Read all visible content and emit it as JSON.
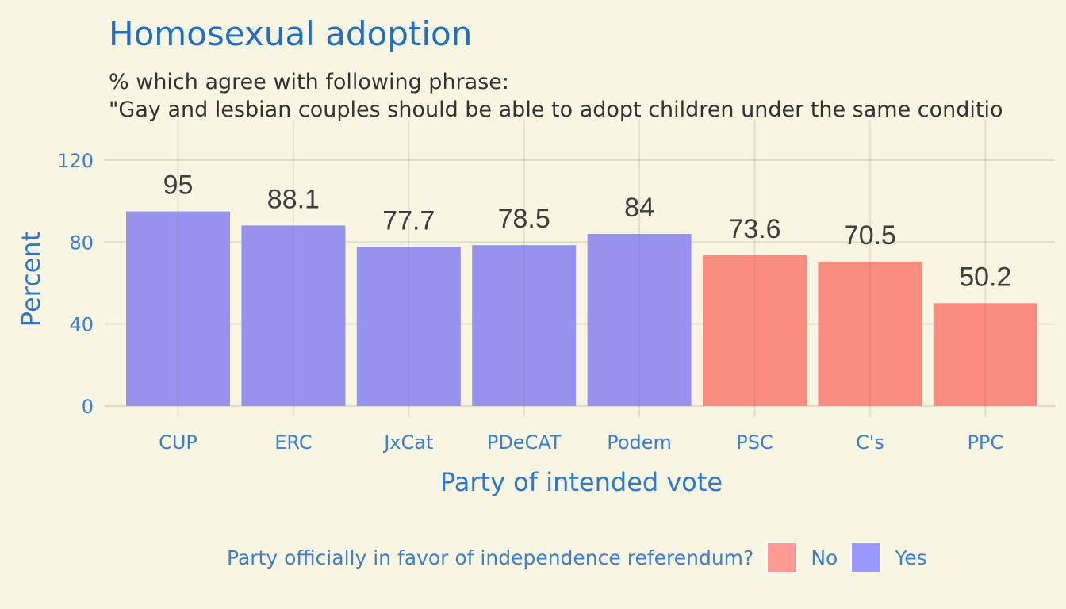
{
  "title": "Homosexual adoption",
  "subtitle_line1": "% which agree with following phrase:",
  "subtitle_line2": "\"Gay and lesbian couples should be able to adopt children under the same conditio",
  "chart_data": {
    "type": "bar",
    "categories": [
      "CUP",
      "ERC",
      "JxCat",
      "PDeCAT",
      "Podem",
      "PSC",
      "C's",
      "PPC"
    ],
    "values": [
      95,
      88.1,
      77.7,
      78.5,
      84,
      73.6,
      70.5,
      50.2
    ],
    "value_labels": [
      "95",
      "88.1",
      "77.7",
      "78.5",
      "84",
      "73.6",
      "70.5",
      "50.2"
    ],
    "group": [
      "Yes",
      "Yes",
      "Yes",
      "Yes",
      "Yes",
      "No",
      "No",
      "No"
    ],
    "xlabel": "Party of intended vote",
    "ylabel": "Percent",
    "ylim": [
      0,
      130
    ],
    "yticks": [
      0,
      40,
      80,
      120
    ],
    "grid": true,
    "legend": {
      "title": "Party officially in favor of independence referendum?",
      "position": "bottom",
      "entries": [
        {
          "label": "No",
          "color": "#fd8c80"
        },
        {
          "label": "Yes",
          "color": "#9593ef"
        }
      ]
    }
  },
  "colors": {
    "Yes": "#9593ef",
    "No": "#fd8c80",
    "background": "#f8f5e2",
    "accent": "#1f6fc9"
  }
}
